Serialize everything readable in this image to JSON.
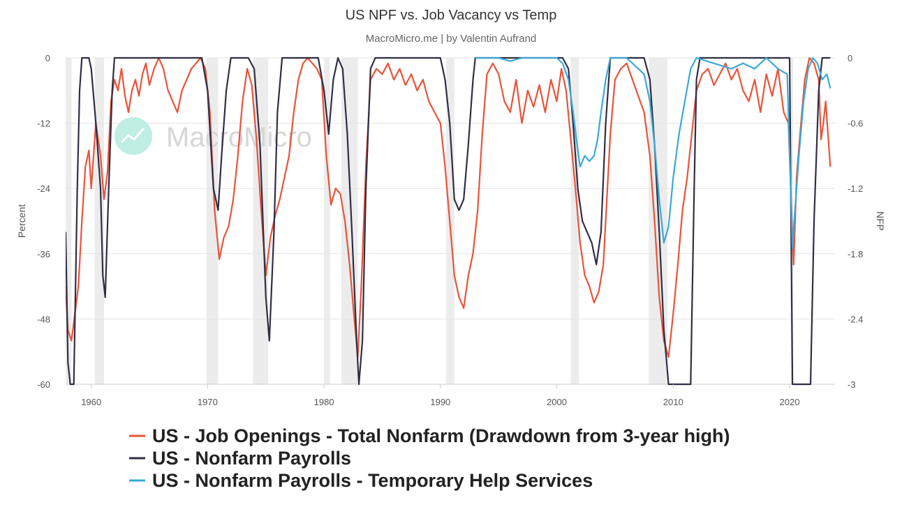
{
  "chart_data": {
    "type": "line",
    "title": "US NPF vs. Job Vacancy vs Temp",
    "subtitle": "MacroMicro.me | by Valentin Aufrand",
    "watermark": "MacroMicro",
    "xlim": [
      1957.8,
      2023.9
    ],
    "x_ticks": [
      "1960",
      "1970",
      "1980",
      "1990",
      "2000",
      "2010",
      "2020"
    ],
    "left_axis": {
      "label": "Percent",
      "ylim": [
        -60,
        0
      ],
      "ticks": [
        "0",
        "-12",
        "-24",
        "-36",
        "-48",
        "-60"
      ]
    },
    "right_axis": {
      "label": "NFP",
      "ylim": [
        -3,
        0
      ],
      "ticks": [
        "0",
        "-0.6",
        "-1.2",
        "-1.8",
        "-2.4",
        "-3"
      ]
    },
    "recessions": [
      [
        1957.6,
        1958.3
      ],
      [
        1960.3,
        1961.1
      ],
      [
        1969.9,
        1970.9
      ],
      [
        1973.9,
        1975.2
      ],
      [
        1980.0,
        1980.5
      ],
      [
        1981.5,
        1982.9
      ],
      [
        1990.5,
        1991.2
      ],
      [
        2001.2,
        2001.9
      ],
      [
        2007.9,
        2009.5
      ],
      [
        2020.1,
        2020.3
      ]
    ],
    "grid": true,
    "series": [
      {
        "name": "US - Job Openings - Total Nonfarm (Drawdown from 3-year high)",
        "axis": "left",
        "color": "#e8533a",
        "points": [
          [
            1957.8,
            -42
          ],
          [
            1958.0,
            -50
          ],
          [
            1958.3,
            -52
          ],
          [
            1958.6,
            -47
          ],
          [
            1958.9,
            -42
          ],
          [
            1959.2,
            -30
          ],
          [
            1959.5,
            -20
          ],
          [
            1959.8,
            -17
          ],
          [
            1960.0,
            -24
          ],
          [
            1960.4,
            -12
          ],
          [
            1960.8,
            -18
          ],
          [
            1961.1,
            -26
          ],
          [
            1961.4,
            -21
          ],
          [
            1961.7,
            -8
          ],
          [
            1962.0,
            -4
          ],
          [
            1962.3,
            -6
          ],
          [
            1962.6,
            -2
          ],
          [
            1962.9,
            -7
          ],
          [
            1963.2,
            -10
          ],
          [
            1963.5,
            -6
          ],
          [
            1963.8,
            -4
          ],
          [
            1964.1,
            -7
          ],
          [
            1964.4,
            -3
          ],
          [
            1964.7,
            -1
          ],
          [
            1965.0,
            -5
          ],
          [
            1965.4,
            -2
          ],
          [
            1965.8,
            0
          ],
          [
            1966.2,
            -2
          ],
          [
            1966.6,
            -6
          ],
          [
            1967.0,
            -8
          ],
          [
            1967.4,
            -10
          ],
          [
            1967.8,
            -6
          ],
          [
            1968.2,
            -4
          ],
          [
            1968.6,
            -2
          ],
          [
            1969.0,
            -1
          ],
          [
            1969.4,
            0
          ],
          [
            1969.8,
            -2
          ],
          [
            1970.2,
            -10
          ],
          [
            1970.6,
            -28
          ],
          [
            1971.0,
            -37
          ],
          [
            1971.4,
            -33
          ],
          [
            1971.8,
            -31
          ],
          [
            1972.2,
            -26
          ],
          [
            1972.6,
            -18
          ],
          [
            1973.0,
            -8
          ],
          [
            1973.4,
            -2
          ],
          [
            1973.8,
            -5
          ],
          [
            1974.2,
            -15
          ],
          [
            1974.6,
            -28
          ],
          [
            1975.0,
            -40
          ],
          [
            1975.4,
            -33
          ],
          [
            1975.8,
            -29
          ],
          [
            1976.2,
            -26
          ],
          [
            1976.6,
            -22
          ],
          [
            1977.0,
            -18
          ],
          [
            1977.4,
            -10
          ],
          [
            1977.8,
            -4
          ],
          [
            1978.2,
            -1
          ],
          [
            1978.6,
            0
          ],
          [
            1979.0,
            -1
          ],
          [
            1979.4,
            -2
          ],
          [
            1979.8,
            -4
          ],
          [
            1980.2,
            -18
          ],
          [
            1980.6,
            -27
          ],
          [
            1981.0,
            -24
          ],
          [
            1981.4,
            -25
          ],
          [
            1981.8,
            -30
          ],
          [
            1982.2,
            -38
          ],
          [
            1982.6,
            -48
          ],
          [
            1982.9,
            -55
          ],
          [
            1983.2,
            -42
          ],
          [
            1983.6,
            -20
          ],
          [
            1984.0,
            -4
          ],
          [
            1984.5,
            -2
          ],
          [
            1985.0,
            -3
          ],
          [
            1985.5,
            -1
          ],
          [
            1986.0,
            -4
          ],
          [
            1986.5,
            -2
          ],
          [
            1987.0,
            -5
          ],
          [
            1987.5,
            -3
          ],
          [
            1988.0,
            -6
          ],
          [
            1988.5,
            -4
          ],
          [
            1989.0,
            -8
          ],
          [
            1989.5,
            -10
          ],
          [
            1990.0,
            -12
          ],
          [
            1990.4,
            -20
          ],
          [
            1990.8,
            -30
          ],
          [
            1991.2,
            -40
          ],
          [
            1991.6,
            -44
          ],
          [
            1992.0,
            -46
          ],
          [
            1992.4,
            -40
          ],
          [
            1992.8,
            -36
          ],
          [
            1993.2,
            -28
          ],
          [
            1993.6,
            -14
          ],
          [
            1994.0,
            -3
          ],
          [
            1994.5,
            -1
          ],
          [
            1995.0,
            -3
          ],
          [
            1995.5,
            -8
          ],
          [
            1996.0,
            -10
          ],
          [
            1996.5,
            -4
          ],
          [
            1997.0,
            -12
          ],
          [
            1997.5,
            -6
          ],
          [
            1998.0,
            -9
          ],
          [
            1998.5,
            -5
          ],
          [
            1999.0,
            -10
          ],
          [
            1999.5,
            -4
          ],
          [
            2000.0,
            -8
          ],
          [
            2000.4,
            -2
          ],
          [
            2000.8,
            -6
          ],
          [
            2001.2,
            -15
          ],
          [
            2001.6,
            -24
          ],
          [
            2002.0,
            -34
          ],
          [
            2002.4,
            -40
          ],
          [
            2002.8,
            -42
          ],
          [
            2003.2,
            -45
          ],
          [
            2003.6,
            -43
          ],
          [
            2004.0,
            -38
          ],
          [
            2004.3,
            -26
          ],
          [
            2004.6,
            -14
          ],
          [
            2005.0,
            -4
          ],
          [
            2005.5,
            -2
          ],
          [
            2006.0,
            -1
          ],
          [
            2006.5,
            -4
          ],
          [
            2007.0,
            -7
          ],
          [
            2007.5,
            -10
          ],
          [
            2008.0,
            -18
          ],
          [
            2008.4,
            -30
          ],
          [
            2008.8,
            -44
          ],
          [
            2009.2,
            -52
          ],
          [
            2009.6,
            -55
          ],
          [
            2010.0,
            -47
          ],
          [
            2010.4,
            -38
          ],
          [
            2010.8,
            -28
          ],
          [
            2011.2,
            -22
          ],
          [
            2011.6,
            -14
          ],
          [
            2012.0,
            -6
          ],
          [
            2012.5,
            -3
          ],
          [
            2013.0,
            -2
          ],
          [
            2013.5,
            -5
          ],
          [
            2014.0,
            -3
          ],
          [
            2014.5,
            -1
          ],
          [
            2015.0,
            -4
          ],
          [
            2015.5,
            -2
          ],
          [
            2016.0,
            -6
          ],
          [
            2016.5,
            -8
          ],
          [
            2017.0,
            -4
          ],
          [
            2017.5,
            -10
          ],
          [
            2018.0,
            -3
          ],
          [
            2018.5,
            -7
          ],
          [
            2019.0,
            -2
          ],
          [
            2019.5,
            -10
          ],
          [
            2019.9,
            -12
          ],
          [
            2020.2,
            -30
          ],
          [
            2020.35,
            -38
          ],
          [
            2020.6,
            -22
          ],
          [
            2020.9,
            -14
          ],
          [
            2021.3,
            -4
          ],
          [
            2021.7,
            0
          ],
          [
            2022.1,
            -1
          ],
          [
            2022.5,
            -4
          ],
          [
            2022.7,
            -15
          ],
          [
            2022.9,
            -12
          ],
          [
            2023.1,
            -8
          ],
          [
            2023.3,
            -14
          ],
          [
            2023.5,
            -20
          ]
        ]
      },
      {
        "name": "US - Nonfarm Payrolls",
        "axis": "right",
        "color": "#2f2e45",
        "points": [
          [
            1957.8,
            -1.6
          ],
          [
            1957.9,
            -2.2
          ],
          [
            1958.0,
            -2.8
          ],
          [
            1958.2,
            -3.0
          ],
          [
            1958.5,
            -3.0
          ],
          [
            1958.8,
            -1.2
          ],
          [
            1959.0,
            -0.3
          ],
          [
            1959.2,
            0
          ],
          [
            1959.8,
            0
          ],
          [
            1960.0,
            -0.1
          ],
          [
            1960.4,
            -0.6
          ],
          [
            1960.8,
            -1.2
          ],
          [
            1961.0,
            -2.0
          ],
          [
            1961.2,
            -2.2
          ],
          [
            1961.5,
            -1.2
          ],
          [
            1961.8,
            -0.3
          ],
          [
            1962.0,
            0
          ],
          [
            1968.0,
            0
          ],
          [
            1969.5,
            0
          ],
          [
            1970.0,
            -0.3
          ],
          [
            1970.5,
            -1.2
          ],
          [
            1970.9,
            -1.4
          ],
          [
            1971.2,
            -0.9
          ],
          [
            1971.6,
            -0.3
          ],
          [
            1972.0,
            0
          ],
          [
            1973.5,
            0
          ],
          [
            1974.0,
            -0.1
          ],
          [
            1974.5,
            -0.8
          ],
          [
            1975.0,
            -2.2
          ],
          [
            1975.3,
            -2.6
          ],
          [
            1975.7,
            -1.6
          ],
          [
            1976.0,
            -0.5
          ],
          [
            1976.4,
            0
          ],
          [
            1979.5,
            0
          ],
          [
            1980.0,
            -0.3
          ],
          [
            1980.4,
            -0.7
          ],
          [
            1980.8,
            -0.2
          ],
          [
            1981.2,
            0
          ],
          [
            1981.6,
            -0.1
          ],
          [
            1982.0,
            -0.7
          ],
          [
            1982.4,
            -1.6
          ],
          [
            1982.8,
            -2.6
          ],
          [
            1983.0,
            -3.0
          ],
          [
            1983.3,
            -2.6
          ],
          [
            1983.6,
            -1.2
          ],
          [
            1984.0,
            -0.1
          ],
          [
            1984.4,
            0
          ],
          [
            1990.0,
            0
          ],
          [
            1990.4,
            -0.2
          ],
          [
            1990.8,
            -0.6
          ],
          [
            1991.2,
            -1.3
          ],
          [
            1991.6,
            -1.4
          ],
          [
            1992.0,
            -1.3
          ],
          [
            1992.4,
            -0.8
          ],
          [
            1992.8,
            -0.2
          ],
          [
            1993.0,
            0
          ],
          [
            2000.5,
            0
          ],
          [
            2001.0,
            -0.1
          ],
          [
            2001.4,
            -0.6
          ],
          [
            2001.8,
            -1.2
          ],
          [
            2002.2,
            -1.5
          ],
          [
            2002.6,
            -1.6
          ],
          [
            2003.0,
            -1.7
          ],
          [
            2003.4,
            -1.9
          ],
          [
            2003.8,
            -1.6
          ],
          [
            2004.2,
            -0.6
          ],
          [
            2004.6,
            0
          ],
          [
            2007.5,
            0
          ],
          [
            2008.0,
            -0.2
          ],
          [
            2008.4,
            -0.8
          ],
          [
            2008.8,
            -1.6
          ],
          [
            2009.2,
            -2.5
          ],
          [
            2009.6,
            -3.0
          ],
          [
            2011.5,
            -3.0
          ],
          [
            2011.8,
            -1.2
          ],
          [
            2012.0,
            -0.2
          ],
          [
            2012.3,
            0
          ],
          [
            2020.0,
            0
          ],
          [
            2020.25,
            -3.0
          ],
          [
            2021.8,
            -3.0
          ],
          [
            2022.1,
            -1.5
          ],
          [
            2022.5,
            -0.3
          ],
          [
            2022.8,
            0
          ],
          [
            2023.5,
            0
          ]
        ]
      },
      {
        "name": "US - Nonfarm Payrolls - Temporary Help Services",
        "axis": "right",
        "color": "#3aa8d8",
        "points": [
          [
            1993.0,
            0
          ],
          [
            1995.0,
            0
          ],
          [
            1996.0,
            -0.03
          ],
          [
            1997.0,
            0
          ],
          [
            1998.0,
            0
          ],
          [
            1999.0,
            0
          ],
          [
            2000.0,
            0
          ],
          [
            2000.5,
            -0.05
          ],
          [
            2001.0,
            -0.2
          ],
          [
            2001.4,
            -0.5
          ],
          [
            2001.8,
            -0.85
          ],
          [
            2002.0,
            -1.0
          ],
          [
            2002.4,
            -0.9
          ],
          [
            2002.8,
            -0.95
          ],
          [
            2003.2,
            -0.9
          ],
          [
            2003.5,
            -0.75
          ],
          [
            2003.8,
            -0.5
          ],
          [
            2004.2,
            -0.2
          ],
          [
            2004.6,
            0
          ],
          [
            2006.0,
            0
          ],
          [
            2006.5,
            -0.05
          ],
          [
            2007.0,
            -0.1
          ],
          [
            2007.5,
            -0.15
          ],
          [
            2008.0,
            -0.4
          ],
          [
            2008.4,
            -0.8
          ],
          [
            2008.8,
            -1.3
          ],
          [
            2009.2,
            -1.7
          ],
          [
            2009.6,
            -1.55
          ],
          [
            2010.0,
            -1.1
          ],
          [
            2010.5,
            -0.7
          ],
          [
            2011.0,
            -0.4
          ],
          [
            2011.5,
            -0.1
          ],
          [
            2012.0,
            0
          ],
          [
            2015.0,
            -0.1
          ],
          [
            2016.0,
            -0.05
          ],
          [
            2017.0,
            -0.1
          ],
          [
            2018.0,
            0
          ],
          [
            2019.0,
            -0.1
          ],
          [
            2019.8,
            -0.15
          ],
          [
            2020.25,
            -1.75
          ],
          [
            2020.4,
            -1.5
          ],
          [
            2020.8,
            -0.9
          ],
          [
            2021.2,
            -0.4
          ],
          [
            2021.6,
            -0.1
          ],
          [
            2022.0,
            0
          ],
          [
            2022.4,
            -0.05
          ],
          [
            2022.8,
            -0.2
          ],
          [
            2023.2,
            -0.15
          ],
          [
            2023.5,
            -0.28
          ]
        ]
      }
    ]
  }
}
